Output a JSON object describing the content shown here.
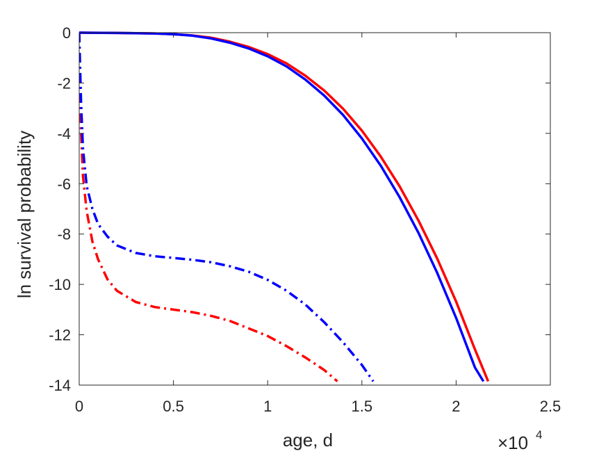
{
  "chart_data": {
    "type": "line",
    "xlabel": "age, d",
    "ylabel": "ln survival probability",
    "x_multiplier_label": "×10",
    "x_multiplier_power": "4",
    "xlim": [
      0,
      25000
    ],
    "ylim": [
      -14,
      0
    ],
    "xticks": [
      0,
      5000,
      10000,
      15000,
      20000,
      25000
    ],
    "xtick_labels": [
      "0",
      "0.5",
      "1",
      "1.5",
      "2",
      "2.5"
    ],
    "yticks": [
      0,
      -2,
      -4,
      -6,
      -8,
      -10,
      -12,
      -14
    ],
    "ytick_labels": [
      "0",
      "-2",
      "-4",
      "-6",
      "-8",
      "-10",
      "-12",
      "-14"
    ],
    "grid": false,
    "legend": "none",
    "series": [
      {
        "color": "#ff0000",
        "style": "solid",
        "x": [
          0,
          2000,
          4000,
          5000,
          6000,
          7000,
          8000,
          9000,
          10000,
          11000,
          12000,
          13000,
          14000,
          15000,
          16000,
          17000,
          18000,
          19000,
          20000,
          21000,
          21700
        ],
        "y": [
          0,
          -0.01,
          -0.03,
          -0.06,
          -0.11,
          -0.2,
          -0.36,
          -0.57,
          -0.85,
          -1.22,
          -1.71,
          -2.3,
          -3.02,
          -3.89,
          -4.92,
          -6.1,
          -7.46,
          -8.98,
          -10.68,
          -12.58,
          -13.85
        ]
      },
      {
        "color": "#0000ff",
        "style": "solid",
        "x": [
          0,
          2000,
          4000,
          5000,
          6000,
          7000,
          8000,
          9000,
          10000,
          11000,
          12000,
          13000,
          14000,
          15000,
          16000,
          17000,
          18000,
          19000,
          20000,
          21000,
          21450
        ],
        "y": [
          0,
          -0.01,
          -0.03,
          -0.06,
          -0.12,
          -0.23,
          -0.4,
          -0.63,
          -0.94,
          -1.34,
          -1.86,
          -2.5,
          -3.27,
          -4.2,
          -5.28,
          -6.53,
          -7.95,
          -9.55,
          -11.33,
          -13.3,
          -13.85
        ]
      },
      {
        "color": "#ff0000",
        "style": "dashdot",
        "x": [
          0,
          50,
          100,
          200,
          400,
          700,
          1000,
          1500,
          2000,
          3000,
          4000,
          5000,
          6000,
          7000,
          8000,
          9000,
          10000,
          11000,
          12000,
          13000,
          13700
        ],
        "y": [
          0,
          -2.5,
          -4.0,
          -5.7,
          -7.1,
          -8.3,
          -9.0,
          -9.8,
          -10.25,
          -10.7,
          -10.9,
          -11.0,
          -11.1,
          -11.25,
          -11.45,
          -11.75,
          -12.05,
          -12.45,
          -12.9,
          -13.4,
          -13.85
        ]
      },
      {
        "color": "#0000ff",
        "style": "dashdot",
        "x": [
          0,
          50,
          100,
          200,
          400,
          700,
          1000,
          1500,
          2000,
          3000,
          4000,
          5000,
          6000,
          7000,
          8000,
          9000,
          10000,
          11000,
          12000,
          13000,
          14000,
          15000,
          15600
        ],
        "y": [
          0,
          -1.5,
          -2.8,
          -4.6,
          -6.1,
          -7.0,
          -7.6,
          -8.1,
          -8.45,
          -8.75,
          -8.88,
          -8.95,
          -9.02,
          -9.12,
          -9.28,
          -9.5,
          -9.82,
          -10.25,
          -10.8,
          -11.5,
          -12.3,
          -13.2,
          -13.85
        ]
      }
    ]
  }
}
